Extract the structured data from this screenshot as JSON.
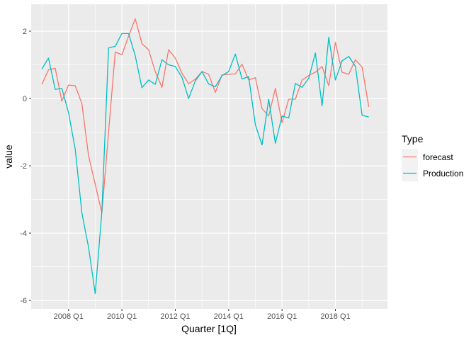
{
  "chart_data": {
    "type": "line",
    "xlabel": "Quarter [1Q]",
    "ylabel": "value",
    "x_tick_labels": [
      "2008 Q1",
      "2010 Q1",
      "2012 Q1",
      "2014 Q1",
      "2016 Q1",
      "2018 Q1"
    ],
    "x_tick_values": [
      2008.0,
      2010.0,
      2012.0,
      2014.0,
      2016.0,
      2018.0
    ],
    "y_tick_labels": [
      "-6",
      "-4",
      "-2",
      "0",
      "2"
    ],
    "y_tick_values": [
      -6,
      -4,
      -2,
      0,
      2
    ],
    "xlim": [
      2006.6,
      2019.95
    ],
    "ylim": [
      -6.25,
      2.8
    ],
    "grid": true,
    "legend_title": "Type",
    "legend_position": "right",
    "colors": {
      "forecast": "#F8766D",
      "Production": "#00BFC4"
    },
    "x": [
      "2007 Q1",
      "2007 Q2",
      "2007 Q3",
      "2007 Q4",
      "2008 Q1",
      "2008 Q2",
      "2008 Q3",
      "2008 Q4",
      "2009 Q1",
      "2009 Q2",
      "2009 Q3",
      "2009 Q4",
      "2010 Q1",
      "2010 Q2",
      "2010 Q3",
      "2010 Q4",
      "2011 Q1",
      "2011 Q2",
      "2011 Q3",
      "2011 Q4",
      "2012 Q1",
      "2012 Q2",
      "2012 Q3",
      "2012 Q4",
      "2013 Q1",
      "2013 Q2",
      "2013 Q3",
      "2013 Q4",
      "2014 Q1",
      "2014 Q2",
      "2014 Q3",
      "2014 Q4",
      "2015 Q1",
      "2015 Q2",
      "2015 Q3",
      "2015 Q4",
      "2016 Q1",
      "2016 Q2",
      "2016 Q3",
      "2016 Q4",
      "2017 Q1",
      "2017 Q2",
      "2017 Q3",
      "2017 Q4",
      "2018 Q1",
      "2018 Q2",
      "2018 Q3",
      "2018 Q4",
      "2019 Q1",
      "2019 Q2"
    ],
    "series": [
      {
        "name": "forecast",
        "values": [
          0.42,
          0.85,
          0.9,
          -0.08,
          0.4,
          0.38,
          -0.15,
          -1.7,
          -2.55,
          -3.4,
          -1.0,
          1.38,
          1.3,
          1.85,
          2.37,
          1.63,
          1.45,
          0.8,
          0.33,
          1.45,
          1.2,
          0.75,
          0.44,
          0.57,
          0.8,
          0.72,
          0.18,
          0.7,
          0.72,
          0.73,
          1.02,
          0.55,
          0.62,
          -0.3,
          -0.52,
          0.3,
          -0.72,
          -0.02,
          -0.02,
          0.55,
          0.68,
          0.78,
          0.95,
          0.38,
          1.67,
          0.78,
          0.72,
          1.15,
          0.93,
          -0.25
        ]
      },
      {
        "name": "Production",
        "values": [
          0.88,
          1.2,
          0.27,
          0.3,
          -0.42,
          -1.5,
          -3.4,
          -4.42,
          -5.8,
          -3.35,
          1.5,
          1.55,
          1.93,
          1.93,
          1.27,
          0.32,
          0.55,
          0.42,
          1.15,
          1.0,
          0.95,
          0.63,
          0.0,
          0.52,
          0.8,
          0.43,
          0.35,
          0.68,
          0.8,
          1.32,
          0.58,
          0.65,
          -0.78,
          -1.38,
          -0.02,
          -1.33,
          -0.52,
          -0.58,
          0.45,
          0.33,
          0.6,
          1.35,
          -0.22,
          1.82,
          0.55,
          1.12,
          1.25,
          0.95,
          -0.5,
          -0.55
        ]
      }
    ]
  }
}
